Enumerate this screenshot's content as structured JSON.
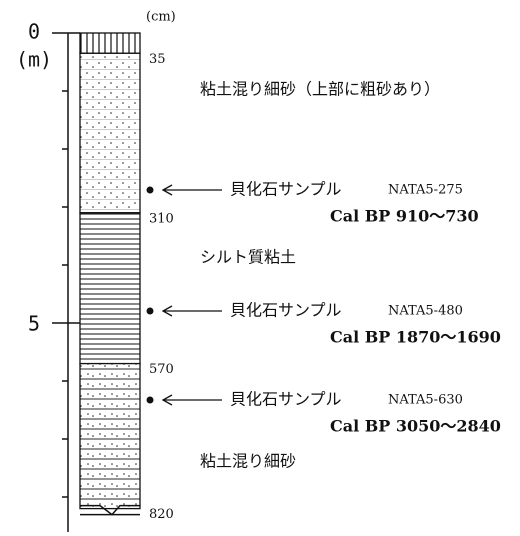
{
  "axis": {
    "top_label": "0",
    "unit": "(m)",
    "mid_label": "5",
    "cm_unit": "(cm)"
  },
  "boundaries": [
    35,
    310,
    570,
    820
  ],
  "layers": [
    "粘土混り細砂（上部に粗砂あり）",
    "シルト質粘土",
    "粘土混り細砂"
  ],
  "samples": [
    {
      "label": "貝化石サンプル",
      "id": "NATA5-275",
      "date": "Cal BP 910〜730"
    },
    {
      "label": "貝化石サンプル",
      "id": "NATA5-480",
      "date": "Cal BP 1870〜1690"
    },
    {
      "label": "貝化石サンプル",
      "id": "NATA5-630",
      "date": "Cal BP 3050〜2840"
    }
  ]
}
